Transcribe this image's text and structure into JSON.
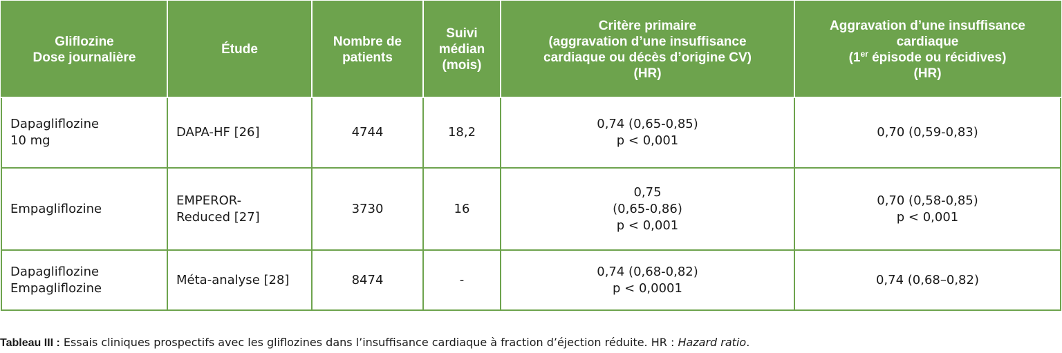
{
  "table": {
    "headers": {
      "c1": [
        "Gliflozine",
        "Dose journalière"
      ],
      "c2": [
        "Étude"
      ],
      "c3": [
        "Nombre de",
        "patients"
      ],
      "c4": [
        "Suivi",
        "médian",
        "(mois)"
      ],
      "c5": [
        "Critère primaire",
        "(aggravation d’une insuffisance",
        "cardiaque ou décès d’origine CV)",
        "(HR)"
      ],
      "c6": {
        "line1": "Aggravation d’une insuffisance",
        "line2": "cardiaque",
        "line3_pre": "(1",
        "line3_sup": "er",
        "line3_post": " épisode ou récidives)",
        "line4": "(HR)"
      }
    },
    "rows": [
      {
        "drug": [
          "Dapagliflozine",
          "10 mg"
        ],
        "study": [
          "DAPA-HF [26]"
        ],
        "patients": "4744",
        "followup": "18,2",
        "primary": [
          "0,74 (0,65-0,85)",
          "p < 0,001"
        ],
        "worsening": [
          "0,70 (0,59-0,83)"
        ]
      },
      {
        "drug": [
          "Empagliflozine"
        ],
        "study": [
          "EMPEROR-",
          "Reduced [27]"
        ],
        "patients": "3730",
        "followup": "16",
        "primary": [
          "0,75",
          "(0,65-0,86)",
          "p < 0,001"
        ],
        "worsening": [
          "0,70 (0,58-0,85)",
          "p < 0,001"
        ]
      },
      {
        "drug": [
          "Dapagliflozine",
          "Empagliflozine"
        ],
        "study": [
          "Méta-analyse [28]"
        ],
        "patients": "8474",
        "followup": "-",
        "primary": [
          "0,74 (0,68-0,82)",
          "p < 0,0001"
        ],
        "worsening": [
          "0,74 (0,68–0,82)"
        ]
      }
    ]
  },
  "caption": {
    "label": "Tableau III :",
    "text": " Essais cliniques prospectifs avec les gliflozines dans l’insuffisance cardiaque à fraction d’éjection réduite. HR : ",
    "italic": "Hazard ratio",
    "end": "."
  },
  "colors": {
    "header_bg": "#6da34d",
    "header_text": "#ffffff",
    "border": "#6da34d"
  }
}
